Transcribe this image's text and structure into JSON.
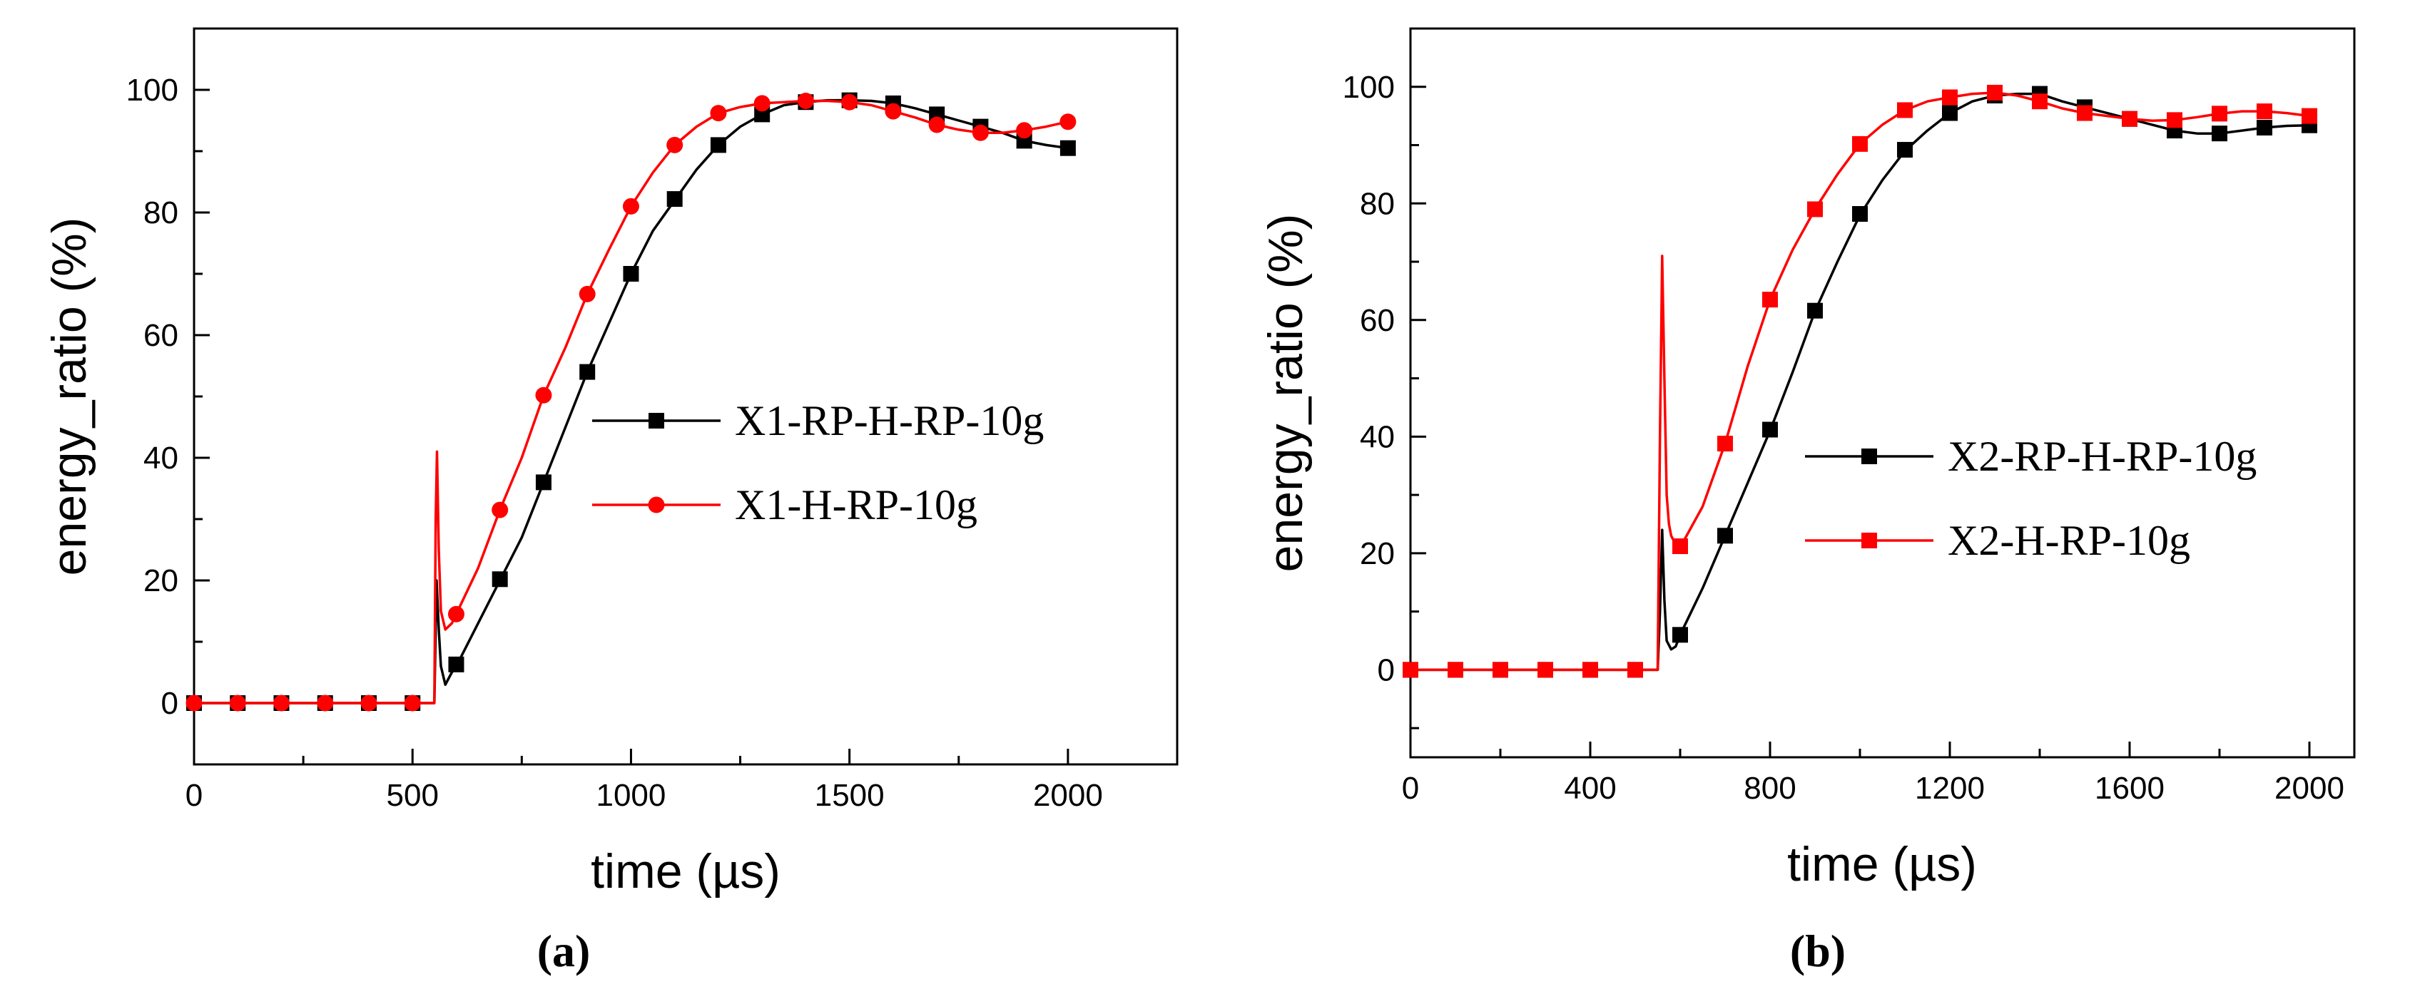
{
  "chart_data": [
    {
      "type": "line",
      "panel_label": "(a)",
      "xlabel": "time (µs)",
      "ylabel": "energy_ratio (%)",
      "xlim": [
        0,
        2250
      ],
      "ylim": [
        -10,
        110
      ],
      "x_ticks": [
        0,
        500,
        1000,
        1500,
        2000
      ],
      "y_ticks": [
        0,
        20,
        40,
        60,
        80,
        100
      ],
      "grid": false,
      "legend_position": "center-right",
      "series": [
        {
          "name": "X1-RP-H-RP-10g",
          "color": "#000000",
          "marker": "square",
          "curve": [
            [
              0,
              0
            ],
            [
              540,
              0
            ],
            [
              550,
              0
            ],
            [
              555,
              20
            ],
            [
              560,
              12
            ],
            [
              565,
              6
            ],
            [
              575,
              3
            ],
            [
              590,
              5
            ],
            [
              600,
              6
            ],
            [
              650,
              13
            ],
            [
              700,
              20
            ],
            [
              750,
              27
            ],
            [
              800,
              36
            ],
            [
              850,
              45
            ],
            [
              900,
              54
            ],
            [
              950,
              62
            ],
            [
              1000,
              70
            ],
            [
              1050,
              77
            ],
            [
              1100,
              82
            ],
            [
              1150,
              87
            ],
            [
              1200,
              91
            ],
            [
              1250,
              94
            ],
            [
              1300,
              96
            ],
            [
              1350,
              97.5
            ],
            [
              1400,
              98
            ],
            [
              1450,
              98.3
            ],
            [
              1500,
              98.3
            ],
            [
              1550,
              98.2
            ],
            [
              1600,
              97.8
            ],
            [
              1650,
              97
            ],
            [
              1700,
              96
            ],
            [
              1750,
              95
            ],
            [
              1800,
              94
            ],
            [
              1850,
              93
            ],
            [
              1900,
              91.7
            ],
            [
              1950,
              91
            ],
            [
              2000,
              90.5
            ]
          ],
          "markers": [
            [
              0,
              0
            ],
            [
              100,
              0
            ],
            [
              200,
              0
            ],
            [
              300,
              0
            ],
            [
              400,
              0
            ],
            [
              500,
              0
            ],
            [
              600,
              6.3
            ],
            [
              700,
              20.2
            ],
            [
              800,
              36
            ],
            [
              900,
              54
            ],
            [
              1000,
              70
            ],
            [
              1100,
              82.2
            ],
            [
              1200,
              91
            ],
            [
              1300,
              96
            ],
            [
              1400,
              98
            ],
            [
              1500,
              98.3
            ],
            [
              1600,
              97.8
            ],
            [
              1700,
              96
            ],
            [
              1800,
              94
            ],
            [
              1900,
              91.7
            ],
            [
              2000,
              90.5
            ]
          ]
        },
        {
          "name": "X1-H-RP-10g",
          "color": "#ff0000",
          "marker": "circle",
          "curve": [
            [
              0,
              0
            ],
            [
              540,
              0
            ],
            [
              550,
              0
            ],
            [
              553,
              30
            ],
            [
              556,
              41
            ],
            [
              560,
              25
            ],
            [
              565,
              15
            ],
            [
              575,
              12
            ],
            [
              590,
              13
            ],
            [
              600,
              14.5
            ],
            [
              650,
              22
            ],
            [
              700,
              31.5
            ],
            [
              750,
              40
            ],
            [
              800,
              50.2
            ],
            [
              850,
              58
            ],
            [
              900,
              66.7
            ],
            [
              950,
              74
            ],
            [
              1000,
              81
            ],
            [
              1050,
              86.5
            ],
            [
              1100,
              91
            ],
            [
              1150,
              94
            ],
            [
              1200,
              96.2
            ],
            [
              1250,
              97.2
            ],
            [
              1300,
              97.8
            ],
            [
              1350,
              98
            ],
            [
              1400,
              98.2
            ],
            [
              1450,
              98.2
            ],
            [
              1500,
              98
            ],
            [
              1550,
              97.5
            ],
            [
              1600,
              96.5
            ],
            [
              1650,
              95.5
            ],
            [
              1700,
              94.3
            ],
            [
              1750,
              93.5
            ],
            [
              1800,
              93
            ],
            [
              1850,
              93
            ],
            [
              1900,
              93.4
            ],
            [
              1950,
              94
            ],
            [
              2000,
              94.8
            ]
          ],
          "markers": [
            [
              0,
              0
            ],
            [
              100,
              0
            ],
            [
              200,
              0
            ],
            [
              300,
              0
            ],
            [
              400,
              0
            ],
            [
              500,
              0
            ],
            [
              600,
              14.5
            ],
            [
              700,
              31.5
            ],
            [
              800,
              50.2
            ],
            [
              900,
              66.7
            ],
            [
              1000,
              81
            ],
            [
              1100,
              91
            ],
            [
              1200,
              96.2
            ],
            [
              1300,
              97.8
            ],
            [
              1400,
              98.2
            ],
            [
              1500,
              98
            ],
            [
              1600,
              96.5
            ],
            [
              1700,
              94.3
            ],
            [
              1800,
              93
            ],
            [
              1900,
              93.4
            ],
            [
              2000,
              94.8
            ]
          ]
        }
      ]
    },
    {
      "type": "line",
      "panel_label": "(b)",
      "xlabel": "time (µs)",
      "ylabel": "energy_ratio (%)",
      "xlim": [
        0,
        2100
      ],
      "ylim": [
        -15,
        110
      ],
      "x_ticks": [
        0,
        400,
        800,
        1200,
        1600,
        2000
      ],
      "y_ticks": [
        0,
        20,
        40,
        60,
        80,
        100
      ],
      "grid": false,
      "legend_position": "center-right",
      "series": [
        {
          "name": "X2-RP-H-RP-10g",
          "color": "#000000",
          "marker": "square",
          "curve": [
            [
              0,
              0
            ],
            [
              540,
              0
            ],
            [
              550,
              0
            ],
            [
              555,
              10
            ],
            [
              560,
              24
            ],
            [
              565,
              12
            ],
            [
              570,
              5
            ],
            [
              580,
              3.5
            ],
            [
              590,
              4
            ],
            [
              600,
              6
            ],
            [
              650,
              14
            ],
            [
              700,
              23
            ],
            [
              750,
              32
            ],
            [
              800,
              41
            ],
            [
              850,
              51
            ],
            [
              900,
              61.5
            ],
            [
              950,
              70
            ],
            [
              1000,
              78
            ],
            [
              1050,
              84
            ],
            [
              1100,
              89
            ],
            [
              1150,
              92.5
            ],
            [
              1200,
              95.5
            ],
            [
              1250,
              97.5
            ],
            [
              1300,
              98.5
            ],
            [
              1350,
              98.8
            ],
            [
              1400,
              98.8
            ],
            [
              1450,
              97.5
            ],
            [
              1500,
              96.5
            ],
            [
              1550,
              95.5
            ],
            [
              1600,
              94.5
            ],
            [
              1650,
              93.5
            ],
            [
              1700,
              92.5
            ],
            [
              1750,
              92
            ],
            [
              1800,
              92
            ],
            [
              1850,
              92.5
            ],
            [
              1900,
              93
            ],
            [
              1950,
              93.3
            ],
            [
              2000,
              93.4
            ]
          ],
          "markers": [
            [
              0,
              0
            ],
            [
              100,
              0
            ],
            [
              200,
              0
            ],
            [
              300,
              0
            ],
            [
              400,
              0
            ],
            [
              500,
              0
            ],
            [
              600,
              6
            ],
            [
              700,
              23
            ],
            [
              800,
              41.2
            ],
            [
              900,
              61.6
            ],
            [
              1000,
              78.2
            ],
            [
              1100,
              89.2
            ],
            [
              1200,
              95.5
            ],
            [
              1300,
              98.5
            ],
            [
              1400,
              98.8
            ],
            [
              1500,
              96.5
            ],
            [
              1600,
              94.5
            ],
            [
              1700,
              92.5
            ],
            [
              1800,
              92
            ],
            [
              1900,
              93
            ],
            [
              2000,
              93.4
            ]
          ]
        },
        {
          "name": "X2-H-RP-10g",
          "color": "#ff0000",
          "marker": "square",
          "curve": [
            [
              0,
              0
            ],
            [
              540,
              0
            ],
            [
              550,
              0
            ],
            [
              555,
              40
            ],
            [
              560,
              71
            ],
            [
              565,
              50
            ],
            [
              570,
              30
            ],
            [
              575,
              25
            ],
            [
              580,
              23
            ],
            [
              590,
              21.5
            ],
            [
              600,
              21
            ],
            [
              650,
              28
            ],
            [
              700,
              38.8
            ],
            [
              750,
              52
            ],
            [
              800,
              63.5
            ],
            [
              850,
              72
            ],
            [
              900,
              79
            ],
            [
              950,
              85
            ],
            [
              1000,
              90.2
            ],
            [
              1050,
              93.5
            ],
            [
              1100,
              96
            ],
            [
              1150,
              97.5
            ],
            [
              1200,
              98.2
            ],
            [
              1250,
              98.8
            ],
            [
              1300,
              99
            ],
            [
              1350,
              98.5
            ],
            [
              1400,
              97.5
            ],
            [
              1450,
              96.3
            ],
            [
              1500,
              95.5
            ],
            [
              1550,
              95
            ],
            [
              1600,
              94.5
            ],
            [
              1650,
              94.2
            ],
            [
              1700,
              94.3
            ],
            [
              1750,
              94.8
            ],
            [
              1800,
              95.4
            ],
            [
              1850,
              95.8
            ],
            [
              1900,
              95.8
            ],
            [
              1950,
              95.5
            ],
            [
              2000,
              95
            ]
          ],
          "markers": [
            [
              0,
              0
            ],
            [
              100,
              0
            ],
            [
              200,
              0
            ],
            [
              300,
              0
            ],
            [
              400,
              0
            ],
            [
              500,
              0
            ],
            [
              600,
              21.2
            ],
            [
              700,
              38.8
            ],
            [
              800,
              63.5
            ],
            [
              900,
              79
            ],
            [
              1000,
              90.2
            ],
            [
              1100,
              96
            ],
            [
              1200,
              98.2
            ],
            [
              1300,
              99
            ],
            [
              1400,
              97.5
            ],
            [
              1500,
              95.5
            ],
            [
              1600,
              94.5
            ],
            [
              1700,
              94.3
            ],
            [
              1800,
              95.4
            ],
            [
              1900,
              95.8
            ],
            [
              2000,
              95
            ]
          ]
        }
      ]
    }
  ]
}
